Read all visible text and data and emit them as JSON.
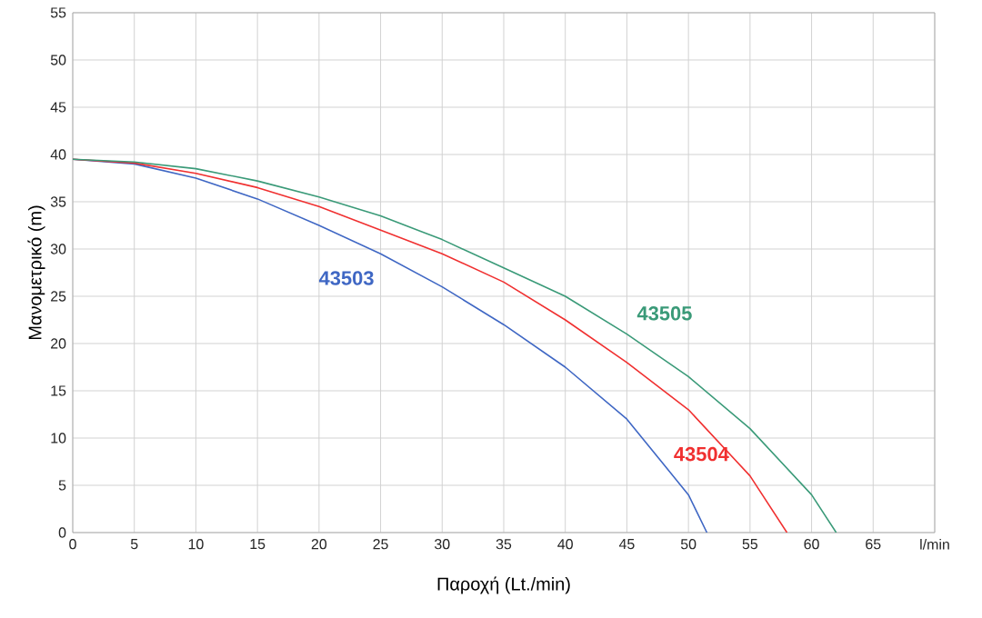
{
  "chart_data": {
    "type": "line",
    "xlabel": "Παροχή (Lt./min)",
    "ylabel": "Μανομετρικό (m)",
    "xlim": [
      0,
      70
    ],
    "ylim": [
      0,
      55
    ],
    "xticks": [
      0,
      5,
      10,
      15,
      20,
      25,
      30,
      35,
      40,
      45,
      50,
      55,
      60,
      65,
      {
        "value": 70,
        "label": "l/min"
      }
    ],
    "yticks": [
      0,
      5,
      10,
      15,
      20,
      25,
      30,
      35,
      40,
      45,
      50,
      55
    ],
    "grid": true,
    "legend": false,
    "marker": "none",
    "line_style": "solid",
    "series": [
      {
        "name": "43503",
        "color": "#3f67c4",
        "x": [
          0,
          5,
          10,
          15,
          20,
          25,
          30,
          35,
          40,
          45,
          50,
          51.5
        ],
        "values": [
          39.5,
          39,
          37.5,
          35.3,
          32.5,
          29.5,
          26,
          22,
          17.5,
          12,
          4,
          0
        ]
      },
      {
        "name": "43504",
        "color": "#f03030",
        "x": [
          0,
          5,
          10,
          15,
          20,
          25,
          30,
          35,
          40,
          45,
          50,
          55,
          58
        ],
        "values": [
          39.5,
          39.1,
          38,
          36.5,
          34.5,
          32,
          29.5,
          26.5,
          22.5,
          18,
          13,
          6,
          0
        ]
      },
      {
        "name": "43505",
        "color": "#3a9a78",
        "x": [
          0,
          5,
          10,
          15,
          20,
          25,
          30,
          35,
          40,
          45,
          50,
          55,
          60,
          62
        ],
        "values": [
          39.5,
          39.2,
          38.5,
          37.2,
          35.5,
          33.5,
          31,
          28,
          25,
          21,
          16.5,
          11,
          4,
          0
        ]
      }
    ]
  }
}
